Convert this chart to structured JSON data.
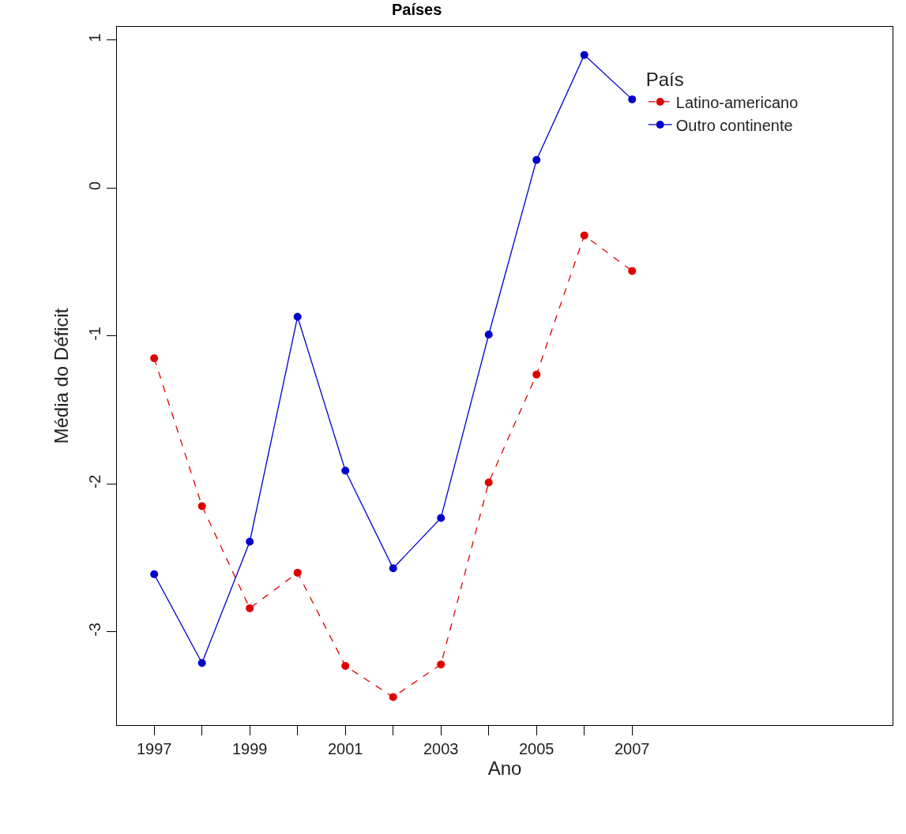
{
  "chart_data": {
    "type": "line",
    "title": "Países",
    "xlabel": "Ano",
    "ylabel": "Média do Déficit",
    "legend_title": "País",
    "x": [
      1997,
      1998,
      1999,
      2000,
      2001,
      2002,
      2003,
      2004,
      2005,
      2006,
      2007
    ],
    "series": [
      {
        "name": "Latino-americano",
        "color": "#e00000",
        "line_style": "dashed",
        "values": [
          -1.15,
          -2.15,
          -2.84,
          -2.6,
          -3.23,
          -3.44,
          -3.22,
          -1.99,
          -1.26,
          -0.32,
          -0.56
        ]
      },
      {
        "name": "Outro continente",
        "color": "#0000cc",
        "line_style": "solid",
        "values": [
          -2.61,
          -3.21,
          -2.39,
          -0.87,
          -1.91,
          -2.57,
          -2.23,
          -0.99,
          0.19,
          0.9,
          0.6
        ]
      }
    ],
    "xlim": [
      1996.22,
      2012.45
    ],
    "ylim": [
      -3.63,
      1.09
    ],
    "xticks": [
      1997,
      {
        "value": 1998,
        "label": null
      },
      1999,
      {
        "value": 2000,
        "label": null
      },
      2001,
      {
        "value": 2002,
        "label": null
      },
      2003,
      {
        "value": 2004,
        "label": null
      },
      2005,
      {
        "value": 2006,
        "label": null
      },
      2007
    ],
    "yticks": [
      -3,
      -2,
      -1,
      0,
      1
    ],
    "marker": "circle",
    "legend": "top right"
  }
}
